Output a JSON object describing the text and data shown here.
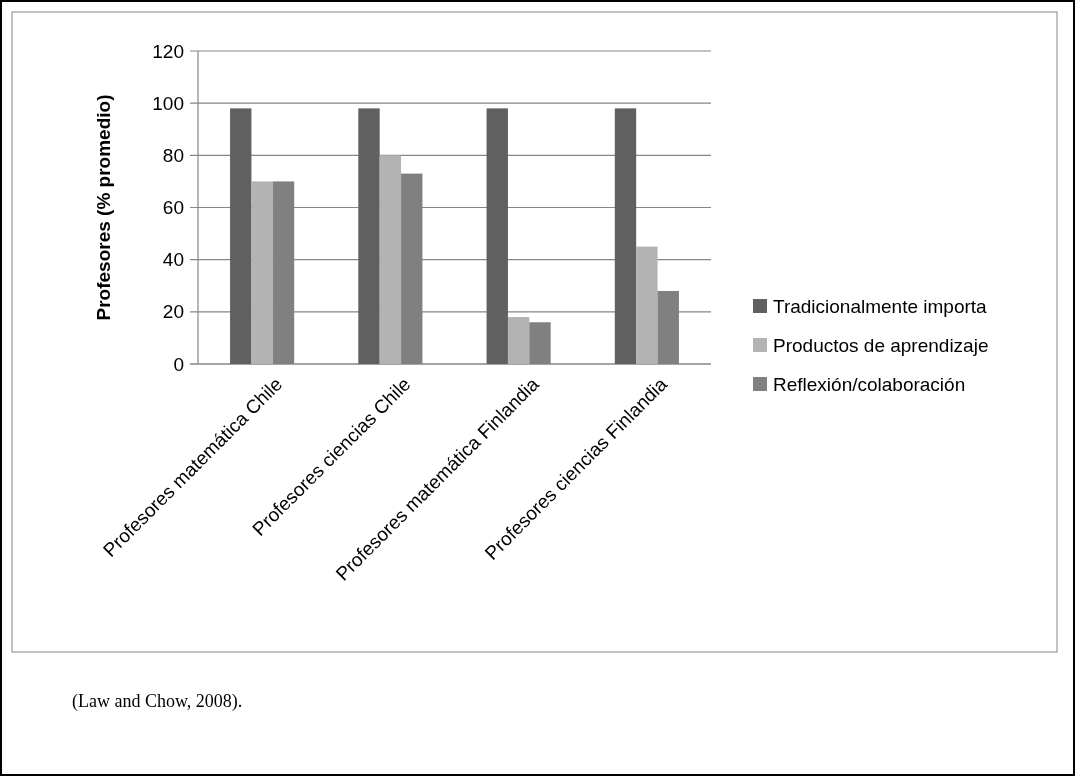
{
  "chart_data": {
    "type": "bar",
    "ylabel": "Profesores (% promedio)",
    "categories": [
      "Profesores matemática Chile",
      "Profesores ciencias Chile",
      "Profesores matemática Finlandia",
      "Profesores ciencias Finlandia"
    ],
    "series": [
      {
        "name": "Tradicionalmente importa",
        "color": "#606060",
        "values": [
          98,
          98,
          98,
          98
        ]
      },
      {
        "name": "Productos de aprendizaje",
        "color": "#b3b3b3",
        "values": [
          70,
          80,
          18,
          45
        ]
      },
      {
        "name": "Reflexión/colaboración",
        "color": "#808080",
        "values": [
          70,
          73,
          16,
          28
        ]
      }
    ],
    "ylim": [
      0,
      120
    ],
    "yticks": [
      0,
      20,
      40,
      60,
      80,
      100,
      120
    ],
    "grid": "y",
    "legend": "right",
    "annotations": [
      "(Law and Chow, 2008)."
    ]
  }
}
